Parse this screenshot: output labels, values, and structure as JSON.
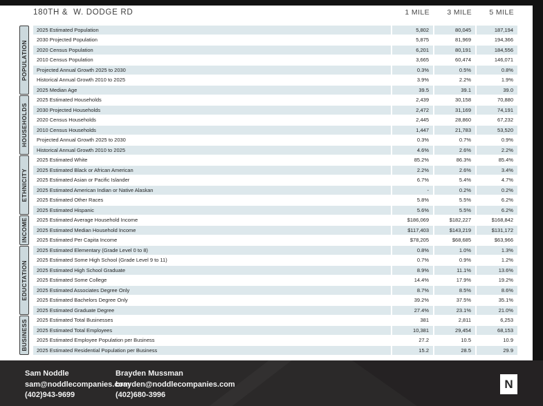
{
  "report": {
    "title": "180TH &  W. DODGE RD",
    "column_headers": [
      "1 MILE",
      "3 MILE",
      "5 MILE"
    ]
  },
  "sections": [
    {
      "label": "POPULATION",
      "rows": [
        {
          "label": "2025 Estimated Population",
          "values": [
            "5,802",
            "80,045",
            "187,194"
          ]
        },
        {
          "label": "2030 Projected Population",
          "values": [
            "5,875",
            "81,969",
            "194,366"
          ]
        },
        {
          "label": "2020 Census Population",
          "values": [
            "6,201",
            "80,191",
            "184,556"
          ]
        },
        {
          "label": "2010 Census Population",
          "values": [
            "3,665",
            "60,474",
            "146,071"
          ]
        },
        {
          "label": "Projected Annual Growth 2025 to 2030",
          "values": [
            "0.3%",
            "0.5%",
            "0.8%"
          ]
        },
        {
          "label": "Historical Annual Growth 2010 to 2025",
          "values": [
            "3.9%",
            "2.2%",
            "1.9%"
          ]
        },
        {
          "label": "2025 Median Age",
          "values": [
            "39.5",
            "39.1",
            "39.0"
          ]
        }
      ]
    },
    {
      "label": "HOUSEHOLDS",
      "rows": [
        {
          "label": "2025 Estimated Households",
          "values": [
            "2,439",
            "30,158",
            "70,880"
          ]
        },
        {
          "label": "2030 Projected Households",
          "values": [
            "2,472",
            "31,169",
            "74,191"
          ]
        },
        {
          "label": "2020 Census Households",
          "values": [
            "2,445",
            "28,860",
            "67,232"
          ]
        },
        {
          "label": "2010 Census Households",
          "values": [
            "1,447",
            "21,783",
            "53,520"
          ]
        },
        {
          "label": "Projected Annual Growth 2025 to 2030",
          "values": [
            "0.3%",
            "0.7%",
            "0.9%"
          ]
        },
        {
          "label": "Historical Annual Growth 2010 to 2025",
          "values": [
            "4.6%",
            "2.6%",
            "2.2%"
          ]
        }
      ]
    },
    {
      "label": "ETHNICITY",
      "rows": [
        {
          "label": "2025 Estimated White",
          "values": [
            "85.2%",
            "86.3%",
            "85.4%"
          ]
        },
        {
          "label": "2025 Estimated Black or African American",
          "values": [
            "2.2%",
            "2.6%",
            "3.4%"
          ]
        },
        {
          "label": "2025 Estimated Asian or Pacific Islander",
          "values": [
            "6.7%",
            "5.4%",
            "4.7%"
          ]
        },
        {
          "label": "2025 Estimated American Indian or Native Alaskan",
          "values": [
            "-",
            "0.2%",
            "0.2%"
          ]
        },
        {
          "label": "2025 Estimated Other Races",
          "values": [
            "5.8%",
            "5.5%",
            "6.2%"
          ]
        },
        {
          "label": "2025 Estimated Hispanic",
          "values": [
            "5.6%",
            "5.5%",
            "6.2%"
          ]
        }
      ]
    },
    {
      "label": "INCOME",
      "rows": [
        {
          "label": "2025 Estimated Average Household Income",
          "values": [
            "$186,069",
            "$182,227",
            "$168,842"
          ]
        },
        {
          "label": "2025 Estimated Median Household Income",
          "values": [
            "$117,403",
            "$143,219",
            "$131,172"
          ]
        },
        {
          "label": "2025 Estimated Per Capita Income",
          "values": [
            "$78,205",
            "$68,685",
            "$63,966"
          ]
        }
      ]
    },
    {
      "label": "EDUCTATION",
      "rows": [
        {
          "label": "2025 Estimated Elementary (Grade Level 0 to 8)",
          "values": [
            "0.8%",
            "1.0%",
            "1.3%"
          ]
        },
        {
          "label": "2025 Estimated Some High School (Grade Level 9 to 11)",
          "values": [
            "0.7%",
            "0.9%",
            "1.2%"
          ]
        },
        {
          "label": "2025 Estimated High School Graduate",
          "values": [
            "8.9%",
            "11.1%",
            "13.6%"
          ]
        },
        {
          "label": "2025 Estimated Some College",
          "values": [
            "14.4%",
            "17.9%",
            "19.2%"
          ]
        },
        {
          "label": "2025 Estimated Associates Degree Only",
          "values": [
            "8.7%",
            "8.5%",
            "8.6%"
          ]
        },
        {
          "label": "2025 Estimated Bachelors Degree Only",
          "values": [
            "39.2%",
            "37.5%",
            "35.1%"
          ]
        },
        {
          "label": "2025 Estimated Graduate Degree",
          "values": [
            "27.4%",
            "23.1%",
            "21.0%"
          ]
        }
      ]
    },
    {
      "label": "BUSINESS",
      "rows": [
        {
          "label": "2025 Estimated Total Businesses",
          "values": [
            "381",
            "2,811",
            "6,253"
          ]
        },
        {
          "label": "2025 Estimated Total Employees",
          "values": [
            "10,381",
            "29,454",
            "68,153"
          ]
        },
        {
          "label": "2025 Estimated Employee Population per Business",
          "values": [
            "27.2",
            "10.5",
            "10.9"
          ]
        },
        {
          "label": "2025 Estimated Residential Population per Business",
          "values": [
            "15.2",
            "28.5",
            "29.9"
          ]
        }
      ]
    }
  ],
  "footer": {
    "contacts": [
      {
        "name": "Sam Noddle",
        "email": "sam@noddlecompanies.com",
        "phone": "(402)943-9699"
      },
      {
        "name": "Brayden Mussman",
        "email": "brayden@noddlecompanies.com",
        "phone": "(402)680-3996"
      }
    ],
    "logo_letter": "N"
  },
  "colors": {
    "row_stripe": "#dde8ec",
    "sidebar_fill": "#ccd9dd",
    "footer_bg": "#2b2929",
    "frame_dark": "#131313"
  }
}
